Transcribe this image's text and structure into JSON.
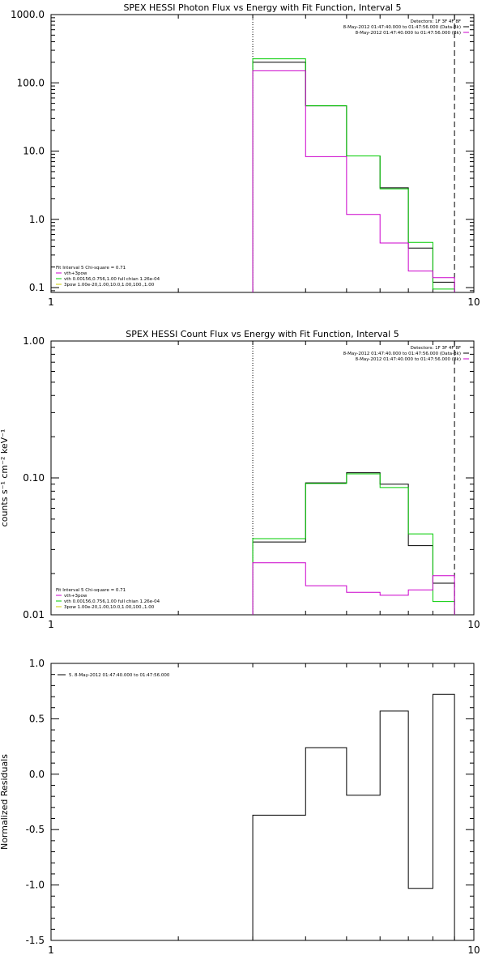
{
  "chart_data": [
    {
      "type": "line",
      "title": "SPEX HESSI Photon Flux vs Energy with Fit Function, Interval 5",
      "ylabel": "",
      "xlabel": "",
      "xscale": "log",
      "yscale": "log",
      "xlim": [
        1,
        10
      ],
      "ylim": [
        0.085,
        1000
      ],
      "x_ticks": [
        1,
        10
      ],
      "x_tick_labels": [
        "1",
        "10"
      ],
      "y_ticks": [
        0.1,
        1,
        10,
        100,
        1000
      ],
      "y_tick_labels": [
        "0.1",
        "1.0",
        "10.0",
        "100.0",
        "1000.0"
      ],
      "vlines": [
        {
          "x": 3.0,
          "style": "dotted"
        },
        {
          "x": 9.0,
          "style": "dashed"
        }
      ],
      "info_legend": {
        "placement": "top-right",
        "lines": [
          {
            "text": "Detectors: 1F 3F 4F 8F",
            "color": "#000000"
          },
          {
            "text": "8-May-2012 01:47:40.000 to 01:47:56.000 (Data-Bk)",
            "color": "#000000"
          },
          {
            "text": "8-May-2012 01:47:40.000 to 01:47:56.000 (Bk)",
            "color": "#cc00cc"
          }
        ]
      },
      "fit_legend": {
        "placement": "bottom-left",
        "lines": [
          {
            "text": "Fit Interval 5   Chi-square = 0.71",
            "color": "#000000"
          },
          {
            "text": "vth+3pow",
            "color": "#cc00cc"
          },
          {
            "text": "vth 0.00156,0.756,1.00   full chian 1.26e-04",
            "color": "#00cc00"
          },
          {
            "text": "3pow 1.00e-20,1.00,10.0,1.00,100.,1.00",
            "color": "#cccc00"
          }
        ]
      },
      "series": [
        {
          "color": "#000000",
          "edges": [
            3,
            4,
            5,
            6,
            7,
            8,
            9
          ],
          "values": [
            200,
            46,
            8.5,
            2.9,
            0.38,
            0.12
          ]
        },
        {
          "color": "#00cc00",
          "edges": [
            3,
            4,
            5,
            6,
            7,
            8,
            9
          ],
          "values": [
            225,
            46,
            8.5,
            2.8,
            0.46,
            0.095
          ]
        },
        {
          "color": "#cc00cc",
          "edges": [
            3,
            4,
            5,
            6,
            7,
            8,
            9
          ],
          "values": [
            150,
            8.3,
            1.18,
            0.45,
            0.175,
            0.14
          ]
        }
      ]
    },
    {
      "type": "line",
      "title": "SPEX HESSI Count Flux vs Energy with Fit Function, Interval 5",
      "ylabel": "counts s⁻¹ cm⁻² keV⁻¹",
      "xlabel": "",
      "xscale": "log",
      "yscale": "log",
      "xlim": [
        1,
        10
      ],
      "ylim": [
        0.01,
        1
      ],
      "x_ticks": [
        1,
        10
      ],
      "x_tick_labels": [
        "1",
        "10"
      ],
      "y_ticks": [
        0.01,
        0.1,
        1
      ],
      "y_tick_labels": [
        "0.01",
        "0.10",
        "1.00"
      ],
      "vlines": [
        {
          "x": 3.0,
          "style": "dotted"
        },
        {
          "x": 9.0,
          "style": "dashed"
        }
      ],
      "info_legend": {
        "placement": "top-right",
        "lines": [
          {
            "text": "Detectors: 1F 3F 4F 8F",
            "color": "#000000"
          },
          {
            "text": "8-May-2012 01:47:40.000 to 01:47:56.000 (Data-Bk)",
            "color": "#000000"
          },
          {
            "text": "8-May-2012 01:47:40.000 to 01:47:56.000 (Bk)",
            "color": "#cc00cc"
          }
        ]
      },
      "fit_legend": {
        "placement": "bottom-left",
        "lines": [
          {
            "text": "Fit Interval 5   Chi-square = 0.71",
            "color": "#000000"
          },
          {
            "text": "vth+3pow",
            "color": "#cc00cc"
          },
          {
            "text": "vth 0.00156,0.756,1.00   full chian 1.26e-04",
            "color": "#00cc00"
          },
          {
            "text": "3pow 1.00e-20,1.00,10.0,1.00,100.,1.00",
            "color": "#cccc00"
          }
        ]
      },
      "series": [
        {
          "color": "#000000",
          "edges": [
            3,
            4,
            5,
            6,
            7,
            8,
            9
          ],
          "values": [
            0.034,
            0.092,
            0.109,
            0.09,
            0.032,
            0.017
          ]
        },
        {
          "color": "#00cc00",
          "edges": [
            3,
            4,
            5,
            6,
            7,
            8,
            9
          ],
          "values": [
            0.036,
            0.091,
            0.107,
            0.085,
            0.039,
            0.0125
          ]
        },
        {
          "color": "#cc00cc",
          "edges": [
            3,
            4,
            5,
            6,
            7,
            8,
            9
          ],
          "values": [
            0.024,
            0.0163,
            0.0146,
            0.0139,
            0.0152,
            0.0193
          ]
        }
      ]
    },
    {
      "type": "line",
      "title": "",
      "ylabel": "Normalized Residuals",
      "xlabel": "",
      "xscale": "log",
      "yscale": "linear",
      "xlim": [
        1,
        10
      ],
      "ylim": [
        -1.5,
        1.0
      ],
      "x_ticks": [
        1,
        10
      ],
      "x_tick_labels": [
        "1",
        "10"
      ],
      "y_ticks": [
        -1.5,
        -1.0,
        -0.5,
        0.0,
        0.5,
        1.0
      ],
      "y_tick_labels": [
        "-1.5",
        "-1.0",
        "-0.5",
        "0.0",
        "0.5",
        "1.0"
      ],
      "vlines": [],
      "info_legend": {
        "placement": "top-left",
        "lines": [
          {
            "text": "5.  8-May-2012 01:47:40.000 to 01:47:56.000",
            "color": "#000000"
          }
        ]
      },
      "fit_legend": {
        "placement": "none",
        "lines": []
      },
      "series": [
        {
          "color": "#000000",
          "edges": [
            3,
            4,
            5,
            6,
            7,
            8,
            9
          ],
          "values": [
            -0.37,
            0.24,
            -0.19,
            0.57,
            -1.03,
            0.72
          ],
          "drop_to_bottom": true
        }
      ]
    }
  ]
}
